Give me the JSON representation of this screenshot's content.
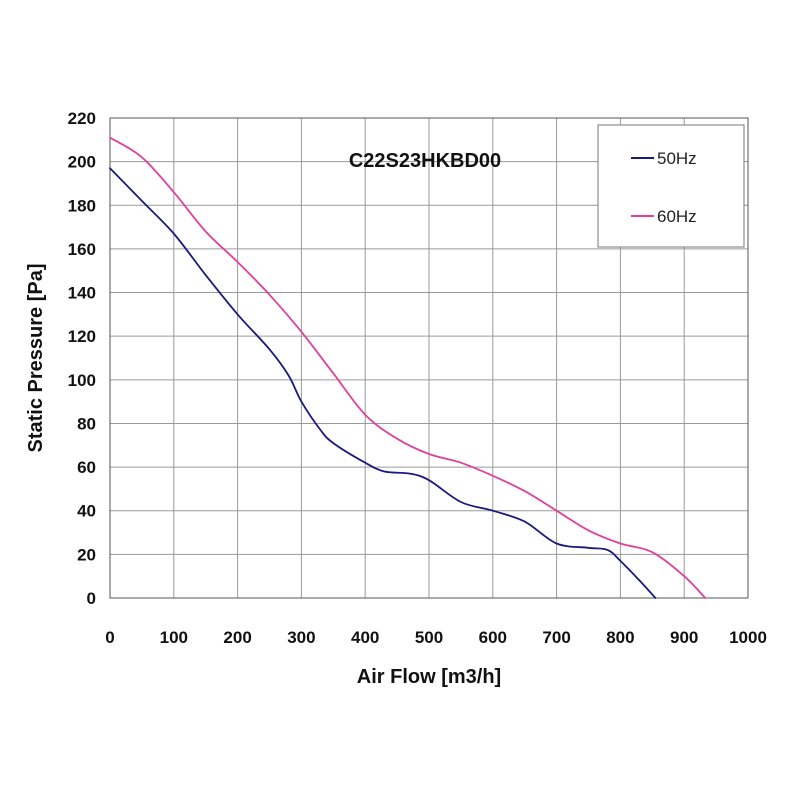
{
  "chart_data": {
    "type": "line",
    "title": "C22S23HKBD00",
    "xlabel": "Air Flow [m3/h]",
    "ylabel": "Static Pressure [Pa]",
    "xlim": [
      0,
      1000
    ],
    "ylim": [
      0,
      220
    ],
    "xticks": [
      0,
      100,
      200,
      300,
      400,
      500,
      600,
      700,
      800,
      900,
      1000
    ],
    "yticks": [
      0,
      20,
      40,
      60,
      80,
      100,
      120,
      140,
      160,
      180,
      200,
      220
    ],
    "grid": true,
    "legend_position": "top-right",
    "series": [
      {
        "name": "50Hz",
        "color": "#1a1a80",
        "x": [
          0,
          50,
          100,
          150,
          200,
          250,
          280,
          300,
          330,
          350,
          400,
          430,
          470,
          500,
          550,
          600,
          650,
          700,
          750,
          780,
          800,
          830,
          855
        ],
        "y": [
          197,
          182,
          167,
          148,
          130,
          114,
          102,
          90,
          77,
          71,
          62,
          58,
          57,
          54,
          44,
          40,
          35,
          25,
          23,
          22,
          17,
          8,
          0
        ]
      },
      {
        "name": "60Hz",
        "color": "#e0409a",
        "x": [
          0,
          50,
          100,
          150,
          200,
          250,
          300,
          350,
          400,
          450,
          500,
          550,
          600,
          650,
          700,
          750,
          800,
          850,
          900,
          933
        ],
        "y": [
          211,
          202,
          186,
          168,
          154,
          139,
          122,
          103,
          84,
          73,
          66,
          62,
          56,
          49,
          40,
          31,
          25,
          21,
          10,
          0
        ]
      }
    ]
  }
}
